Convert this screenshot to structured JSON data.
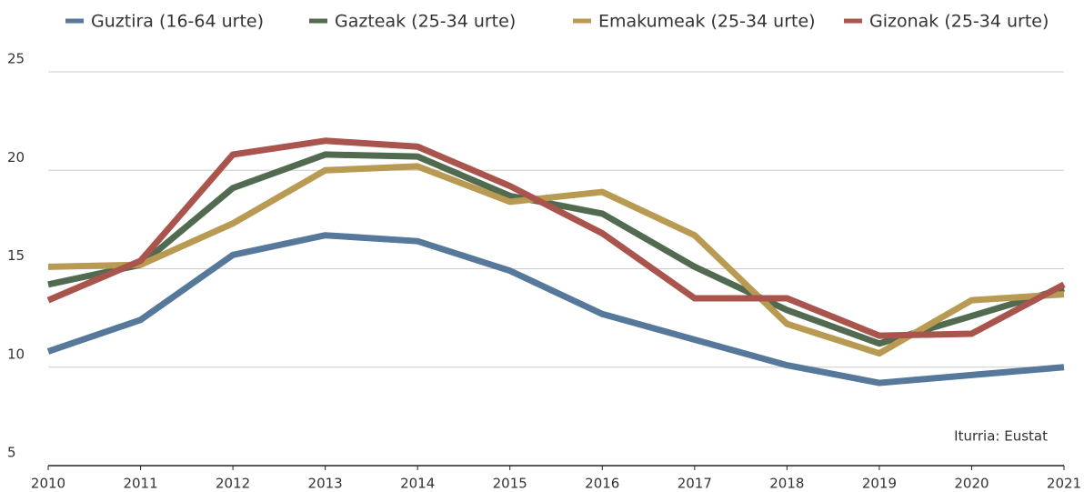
{
  "chart_data": {
    "type": "line",
    "annotation": "Iturria: Eustat",
    "x": [
      2010,
      2011,
      2012,
      2013,
      2014,
      2015,
      2016,
      2017,
      2018,
      2019,
      2020,
      2021
    ],
    "xlim": [
      2010,
      2021
    ],
    "xticks": [
      2010,
      2011,
      2012,
      2013,
      2014,
      2015,
      2016,
      2017,
      2018,
      2019,
      2020,
      2021
    ],
    "ylim": [
      5,
      25
    ],
    "yticks": [
      5,
      10,
      15,
      20,
      25
    ],
    "grid": true,
    "legend": "top",
    "series": [
      {
        "name": "Guztira (16-64 urte)",
        "color": "#56789a",
        "values": [
          10.8,
          12.4,
          15.7,
          16.7,
          16.4,
          14.9,
          12.7,
          11.4,
          10.1,
          9.2,
          9.6,
          10.0
        ]
      },
      {
        "name": "Gazteak (25-34 urte)",
        "color": "#526b50",
        "values": [
          14.2,
          15.2,
          19.1,
          20.8,
          20.7,
          18.7,
          17.8,
          15.1,
          12.9,
          11.2,
          12.6,
          14.0
        ]
      },
      {
        "name": "Emakumeak (25-34 urte)",
        "color": "#b89a52",
        "values": [
          15.1,
          15.2,
          17.3,
          20.0,
          20.2,
          18.4,
          18.9,
          16.7,
          12.2,
          10.7,
          13.4,
          13.7
        ]
      },
      {
        "name": "Gizonak (25-34 urte)",
        "color": "#a9544c",
        "values": [
          13.4,
          15.4,
          20.8,
          21.5,
          21.2,
          19.2,
          16.8,
          13.5,
          13.5,
          11.6,
          11.7,
          14.2
        ]
      }
    ]
  }
}
